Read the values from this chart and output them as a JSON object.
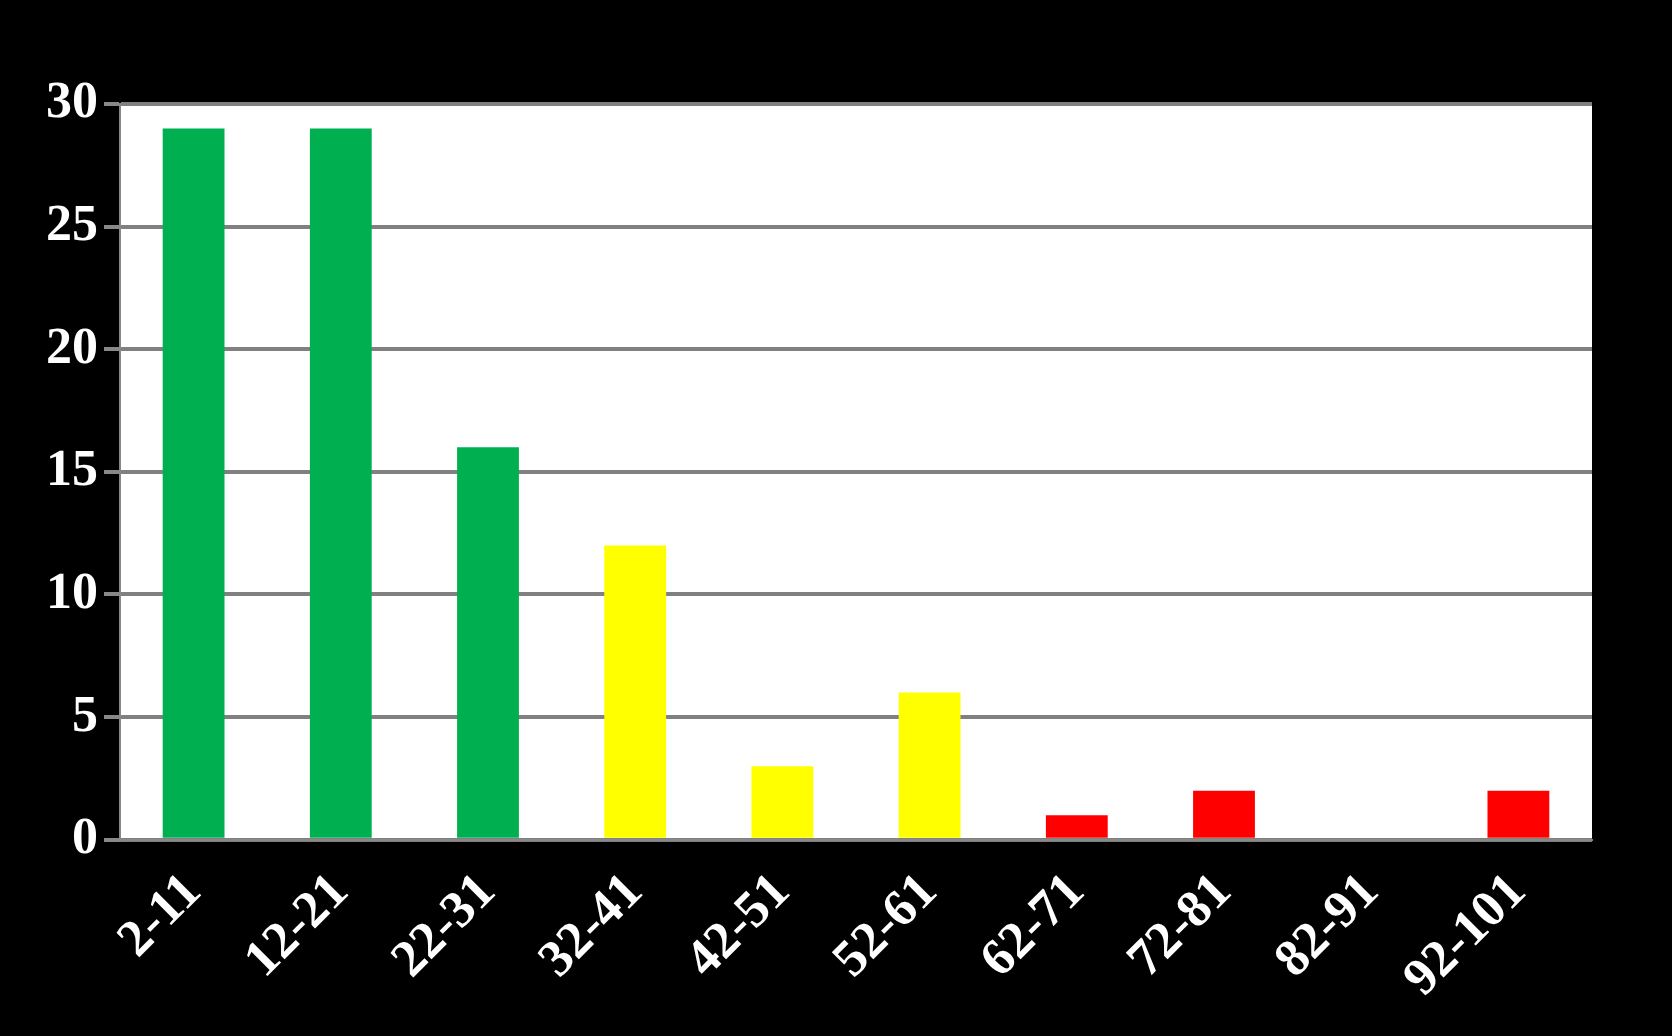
{
  "chart_data": {
    "type": "bar",
    "categories": [
      "2-11",
      "12-21",
      "22-31",
      "32-41",
      "42-51",
      "52-61",
      "62-71",
      "72-81",
      "82-91",
      "92-101"
    ],
    "values": [
      29,
      29,
      16,
      12,
      3,
      6,
      1,
      2,
      0,
      2
    ],
    "colors": [
      "#00b050",
      "#00b050",
      "#00b050",
      "#ffff00",
      "#ffff00",
      "#ffff00",
      "#ff0000",
      "#ff0000",
      "#ff0000",
      "#ff0000"
    ],
    "ylim": [
      0,
      30
    ],
    "yticks": [
      0,
      5,
      10,
      15,
      20,
      25,
      30
    ],
    "grid": "y",
    "legend": false
  }
}
